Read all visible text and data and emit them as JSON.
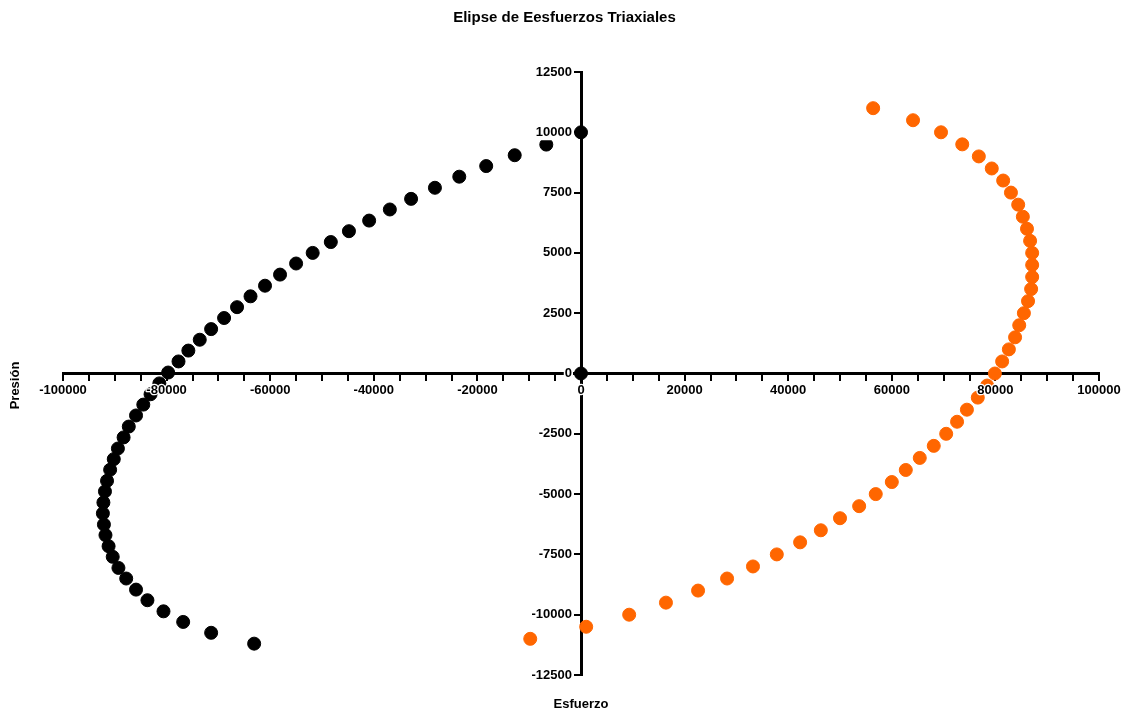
{
  "chart_data": {
    "type": "scatter",
    "title": "Elipse de Eesfuerzos Triaxiales",
    "xlabel": "Esfuerzo",
    "ylabel": "Presión",
    "xlim": [
      -100000,
      100000
    ],
    "xticks": [
      -100000,
      {
        "value": -95000,
        "label": null
      },
      {
        "value": -90000,
        "label": null
      },
      {
        "value": -85000,
        "label": null
      },
      -80000,
      {
        "value": -75000,
        "label": null
      },
      {
        "value": -70000,
        "label": null
      },
      {
        "value": -65000,
        "label": null
      },
      -60000,
      {
        "value": -55000,
        "label": null
      },
      {
        "value": -50000,
        "label": null
      },
      {
        "value": -45000,
        "label": null
      },
      -40000,
      {
        "value": -35000,
        "label": null
      },
      {
        "value": -30000,
        "label": null
      },
      {
        "value": -25000,
        "label": null
      },
      -20000,
      {
        "value": -15000,
        "label": null
      },
      {
        "value": -10000,
        "label": null
      },
      {
        "value": -5000,
        "label": null
      },
      0,
      {
        "value": 5000,
        "label": null
      },
      {
        "value": 10000,
        "label": null
      },
      {
        "value": 15000,
        "label": null
      },
      20000,
      {
        "value": 25000,
        "label": null
      },
      {
        "value": 30000,
        "label": null
      },
      {
        "value": 35000,
        "label": null
      },
      40000,
      {
        "value": 45000,
        "label": null
      },
      {
        "value": 50000,
        "label": null
      },
      {
        "value": 55000,
        "label": null
      },
      60000,
      {
        "value": 65000,
        "label": null
      },
      {
        "value": 70000,
        "label": null
      },
      {
        "value": 75000,
        "label": null
      },
      80000,
      {
        "value": 85000,
        "label": null
      },
      {
        "value": 90000,
        "label": null
      },
      {
        "value": 95000,
        "label": null
      },
      100000
    ],
    "ylim": [
      -12500,
      12500
    ],
    "yticks": [
      -12500,
      -10000,
      -7500,
      -5000,
      -2500,
      0,
      2500,
      5000,
      7500,
      10000,
      12500
    ],
    "grid": false,
    "legend": false,
    "marker": "circle",
    "series": [
      {
        "color": "#000000",
        "x": [
          0,
          0,
          -6700,
          -12800,
          -18300,
          -23500,
          -28200,
          -32800,
          -36900,
          -40900,
          -44800,
          -48300,
          -51800,
          -55000,
          -58100,
          -61000,
          -63800,
          -66400,
          -68900,
          -71400,
          -73600,
          -75800,
          -77700,
          -79700,
          -81400,
          -83100,
          -84500,
          -85900,
          -87300,
          -88300,
          -89400,
          -90200,
          -90900,
          -91500,
          -91900,
          -92200,
          -92300,
          -92100,
          -91800,
          -91200,
          -90400,
          -89300,
          -87800,
          -85900,
          -83700,
          -80600,
          -76800,
          -71400,
          -63100
        ],
        "values": [
          10000,
          0,
          9490,
          9050,
          8600,
          8160,
          7700,
          7240,
          6800,
          6340,
          5900,
          5450,
          5000,
          4560,
          4100,
          3640,
          3200,
          2750,
          2300,
          1840,
          1400,
          950,
          500,
          40,
          -410,
          -860,
          -1290,
          -1740,
          -2200,
          -2650,
          -3110,
          -3550,
          -3990,
          -4450,
          -4890,
          -5350,
          -5800,
          -6260,
          -6700,
          -7160,
          -7600,
          -8060,
          -8500,
          -8960,
          -9400,
          -9860,
          -10300,
          -10750,
          -11200
        ]
      },
      {
        "color": "#ff6600",
        "x": [
          56400,
          64100,
          69500,
          73600,
          76800,
          79300,
          81500,
          83000,
          84400,
          85300,
          86100,
          86700,
          87100,
          87100,
          87100,
          86900,
          86300,
          85500,
          84600,
          83800,
          82600,
          81300,
          79900,
          78400,
          76600,
          74500,
          72600,
          70500,
          68100,
          65400,
          62700,
          60000,
          56900,
          53700,
          50000,
          46300,
          42300,
          37800,
          33200,
          28200,
          22600,
          16400,
          9300,
          1000,
          -9800
        ],
        "values": [
          11000,
          10500,
          10000,
          9500,
          9000,
          8500,
          8000,
          7500,
          7000,
          6500,
          6000,
          5500,
          5000,
          4500,
          4000,
          3500,
          3000,
          2500,
          2000,
          1500,
          1000,
          500,
          0,
          -500,
          -1000,
          -1500,
          -2000,
          -2500,
          -3000,
          -3500,
          -4000,
          -4500,
          -5000,
          -5500,
          -6000,
          -6500,
          -7000,
          -7500,
          -8000,
          -8500,
          -9000,
          -9500,
          -10000,
          -10500,
          -11000
        ]
      }
    ]
  }
}
